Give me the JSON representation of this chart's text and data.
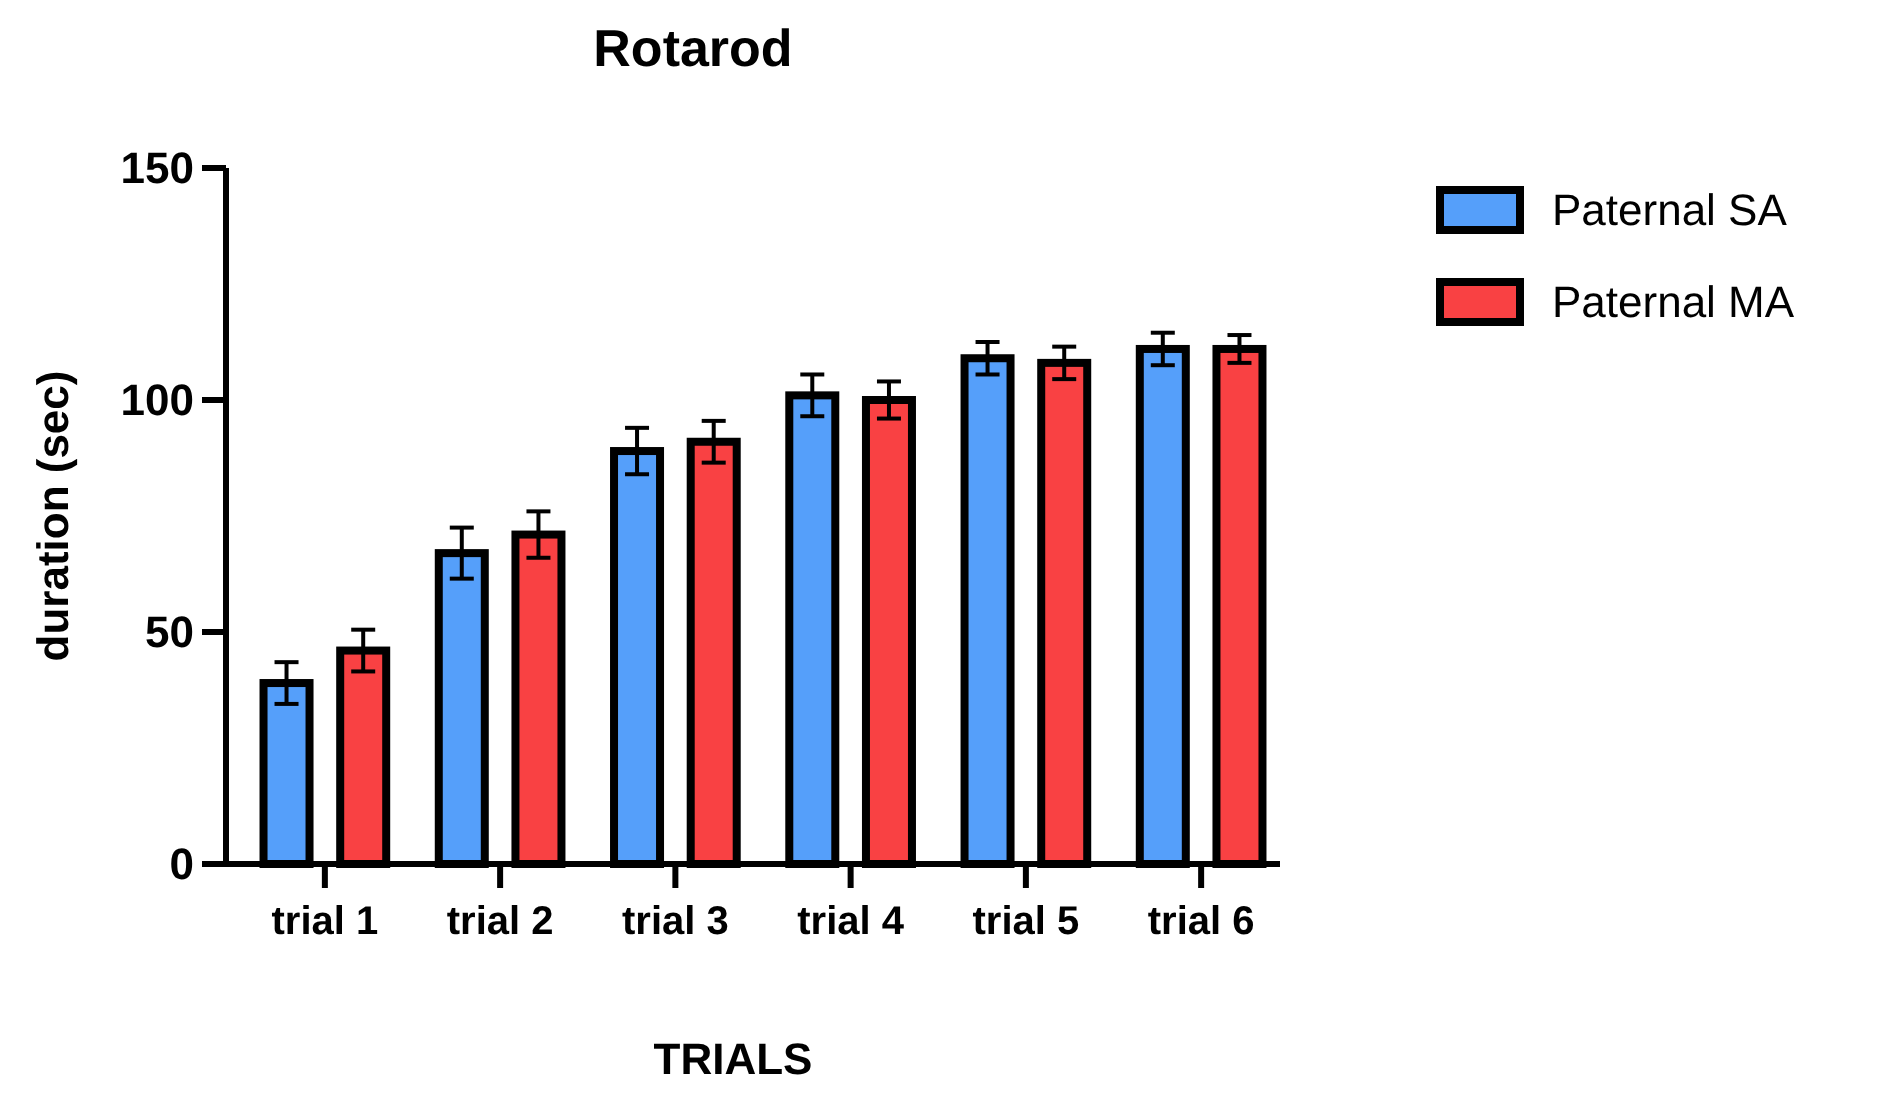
{
  "chart_data": {
    "type": "bar",
    "title": "Rotarod",
    "xlabel": "TRIALS",
    "ylabel": "duration (sec)",
    "categories": [
      "trial 1",
      "trial 2",
      "trial 3",
      "trial 4",
      "trial 5",
      "trial 6"
    ],
    "series": [
      {
        "name": "Paternal SA",
        "color": "#559ffa",
        "values": [
          39,
          67,
          89,
          101,
          109,
          111
        ],
        "errors": [
          4.5,
          5.5,
          5,
          4.5,
          3.5,
          3.5
        ]
      },
      {
        "name": "Paternal MA",
        "color": "#f94143",
        "values": [
          46,
          71,
          91,
          100,
          108,
          111
        ],
        "errors": [
          4.5,
          5,
          4.5,
          4,
          3.5,
          3
        ]
      }
    ],
    "ylim": [
      0,
      150
    ],
    "yticks": [
      0,
      50,
      100,
      150
    ],
    "grid": false,
    "legend": "top right"
  }
}
